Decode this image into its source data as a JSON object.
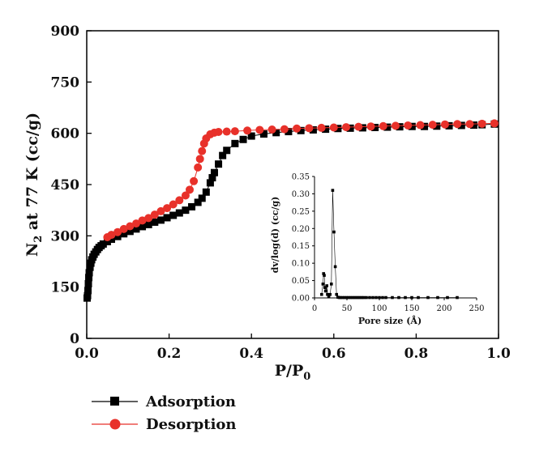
{
  "chart_data": [
    {
      "type": "scatter",
      "title": "",
      "xlabel": "P/P",
      "xlabel_subscript": "0",
      "ylabel": "N",
      "ylabel_subscript": "2",
      "ylabel_rest": " at 77 K (cc/g)",
      "xlim": [
        0.0,
        1.0
      ],
      "ylim": [
        0,
        900
      ],
      "xticks": [
        "0.0",
        "0.2",
        "0.4",
        "0.6",
        "0.8",
        "1.0"
      ],
      "yticks": [
        "0",
        "150",
        "300",
        "450",
        "600",
        "750",
        "900"
      ],
      "grid": false,
      "legend_position": "bottom-left",
      "series": [
        {
          "name": "Adsorption",
          "color": "#000000",
          "marker": "square",
          "x": [
            0.001,
            0.002,
            0.003,
            0.004,
            0.005,
            0.006,
            0.008,
            0.01,
            0.012,
            0.015,
            0.018,
            0.022,
            0.026,
            0.03,
            0.035,
            0.04,
            0.05,
            0.06,
            0.075,
            0.09,
            0.105,
            0.12,
            0.135,
            0.15,
            0.165,
            0.18,
            0.195,
            0.21,
            0.225,
            0.24,
            0.255,
            0.27,
            0.28,
            0.29,
            0.3,
            0.305,
            0.31,
            0.32,
            0.33,
            0.34,
            0.36,
            0.38,
            0.4,
            0.43,
            0.46,
            0.49,
            0.52,
            0.55,
            0.58,
            0.61,
            0.64,
            0.67,
            0.7,
            0.73,
            0.76,
            0.79,
            0.82,
            0.85,
            0.88,
            0.91,
            0.94,
            0.96,
            0.99
          ],
          "y": [
            118,
            125,
            140,
            160,
            178,
            192,
            208,
            220,
            230,
            238,
            246,
            253,
            260,
            266,
            271,
            276,
            283,
            290,
            298,
            306,
            313,
            320,
            327,
            333,
            340,
            346,
            353,
            360,
            367,
            375,
            385,
            398,
            410,
            428,
            455,
            470,
            485,
            510,
            535,
            550,
            570,
            582,
            592,
            598,
            602,
            605,
            608,
            610,
            612,
            614,
            615,
            616,
            617,
            618,
            619,
            620,
            620,
            621,
            622,
            623,
            624,
            625,
            627
          ]
        },
        {
          "name": "Desorption",
          "color": "#e8312a",
          "marker": "circle",
          "x": [
            0.99,
            0.96,
            0.93,
            0.9,
            0.87,
            0.84,
            0.81,
            0.78,
            0.75,
            0.72,
            0.69,
            0.66,
            0.63,
            0.6,
            0.57,
            0.54,
            0.51,
            0.48,
            0.45,
            0.42,
            0.39,
            0.36,
            0.34,
            0.32,
            0.31,
            0.3,
            0.29,
            0.285,
            0.28,
            0.275,
            0.27,
            0.26,
            0.25,
            0.24,
            0.225,
            0.21,
            0.195,
            0.18,
            0.165,
            0.15,
            0.135,
            0.12,
            0.105,
            0.09,
            0.075,
            0.06,
            0.05
          ],
          "y": [
            629,
            628,
            627,
            627,
            626,
            625,
            624,
            623,
            622,
            621,
            620,
            619,
            618,
            617,
            616,
            615,
            614,
            612,
            611,
            610,
            608,
            606,
            605,
            604,
            602,
            597,
            585,
            570,
            548,
            525,
            500,
            460,
            435,
            418,
            404,
            392,
            381,
            372,
            362,
            352,
            345,
            336,
            328,
            320,
            311,
            303,
            296
          ]
        }
      ]
    },
    {
      "type": "scatter",
      "title": "",
      "xlabel": "Pore size (Å)",
      "ylabel": "dv/log(d) (cc/g)",
      "xlim": [
        0,
        250
      ],
      "ylim": [
        0,
        0.35
      ],
      "xticks": [
        "0",
        "50",
        "100",
        "150",
        "200",
        "250"
      ],
      "yticks": [
        "0.00",
        "0.05",
        "0.10",
        "0.15",
        "0.20",
        "0.25",
        "0.30",
        "0.35"
      ],
      "grid": false,
      "series": [
        {
          "name": "",
          "color": "#000000",
          "marker": "square",
          "x": [
            11,
            13,
            14,
            15,
            16,
            17,
            18,
            19,
            20,
            22,
            24,
            26,
            28,
            30,
            32,
            34,
            36,
            38,
            40,
            43,
            46,
            49,
            52,
            55,
            58,
            61,
            64,
            67,
            70,
            73,
            76,
            80,
            85,
            90,
            95,
            100,
            105,
            110,
            120,
            130,
            140,
            150,
            160,
            175,
            190,
            205,
            220
          ],
          "y": [
            0.01,
            0.04,
            0.07,
            0.065,
            0.03,
            0.02,
            0.02,
            0.035,
            0.01,
            0.003,
            0.01,
            0.04,
            0.31,
            0.19,
            0.09,
            0.01,
            0.002,
            0.001,
            0.001,
            0.001,
            0.001,
            0.001,
            0.001,
            0.001,
            0.001,
            0.001,
            0.001,
            0.001,
            0.001,
            0.001,
            0.001,
            0.001,
            0.001,
            0.001,
            0.001,
            0.001,
            0.001,
            0.001,
            0.001,
            0.001,
            0.001,
            0.001,
            0.001,
            0.001,
            0.001,
            0.001,
            0.001
          ]
        }
      ]
    }
  ]
}
